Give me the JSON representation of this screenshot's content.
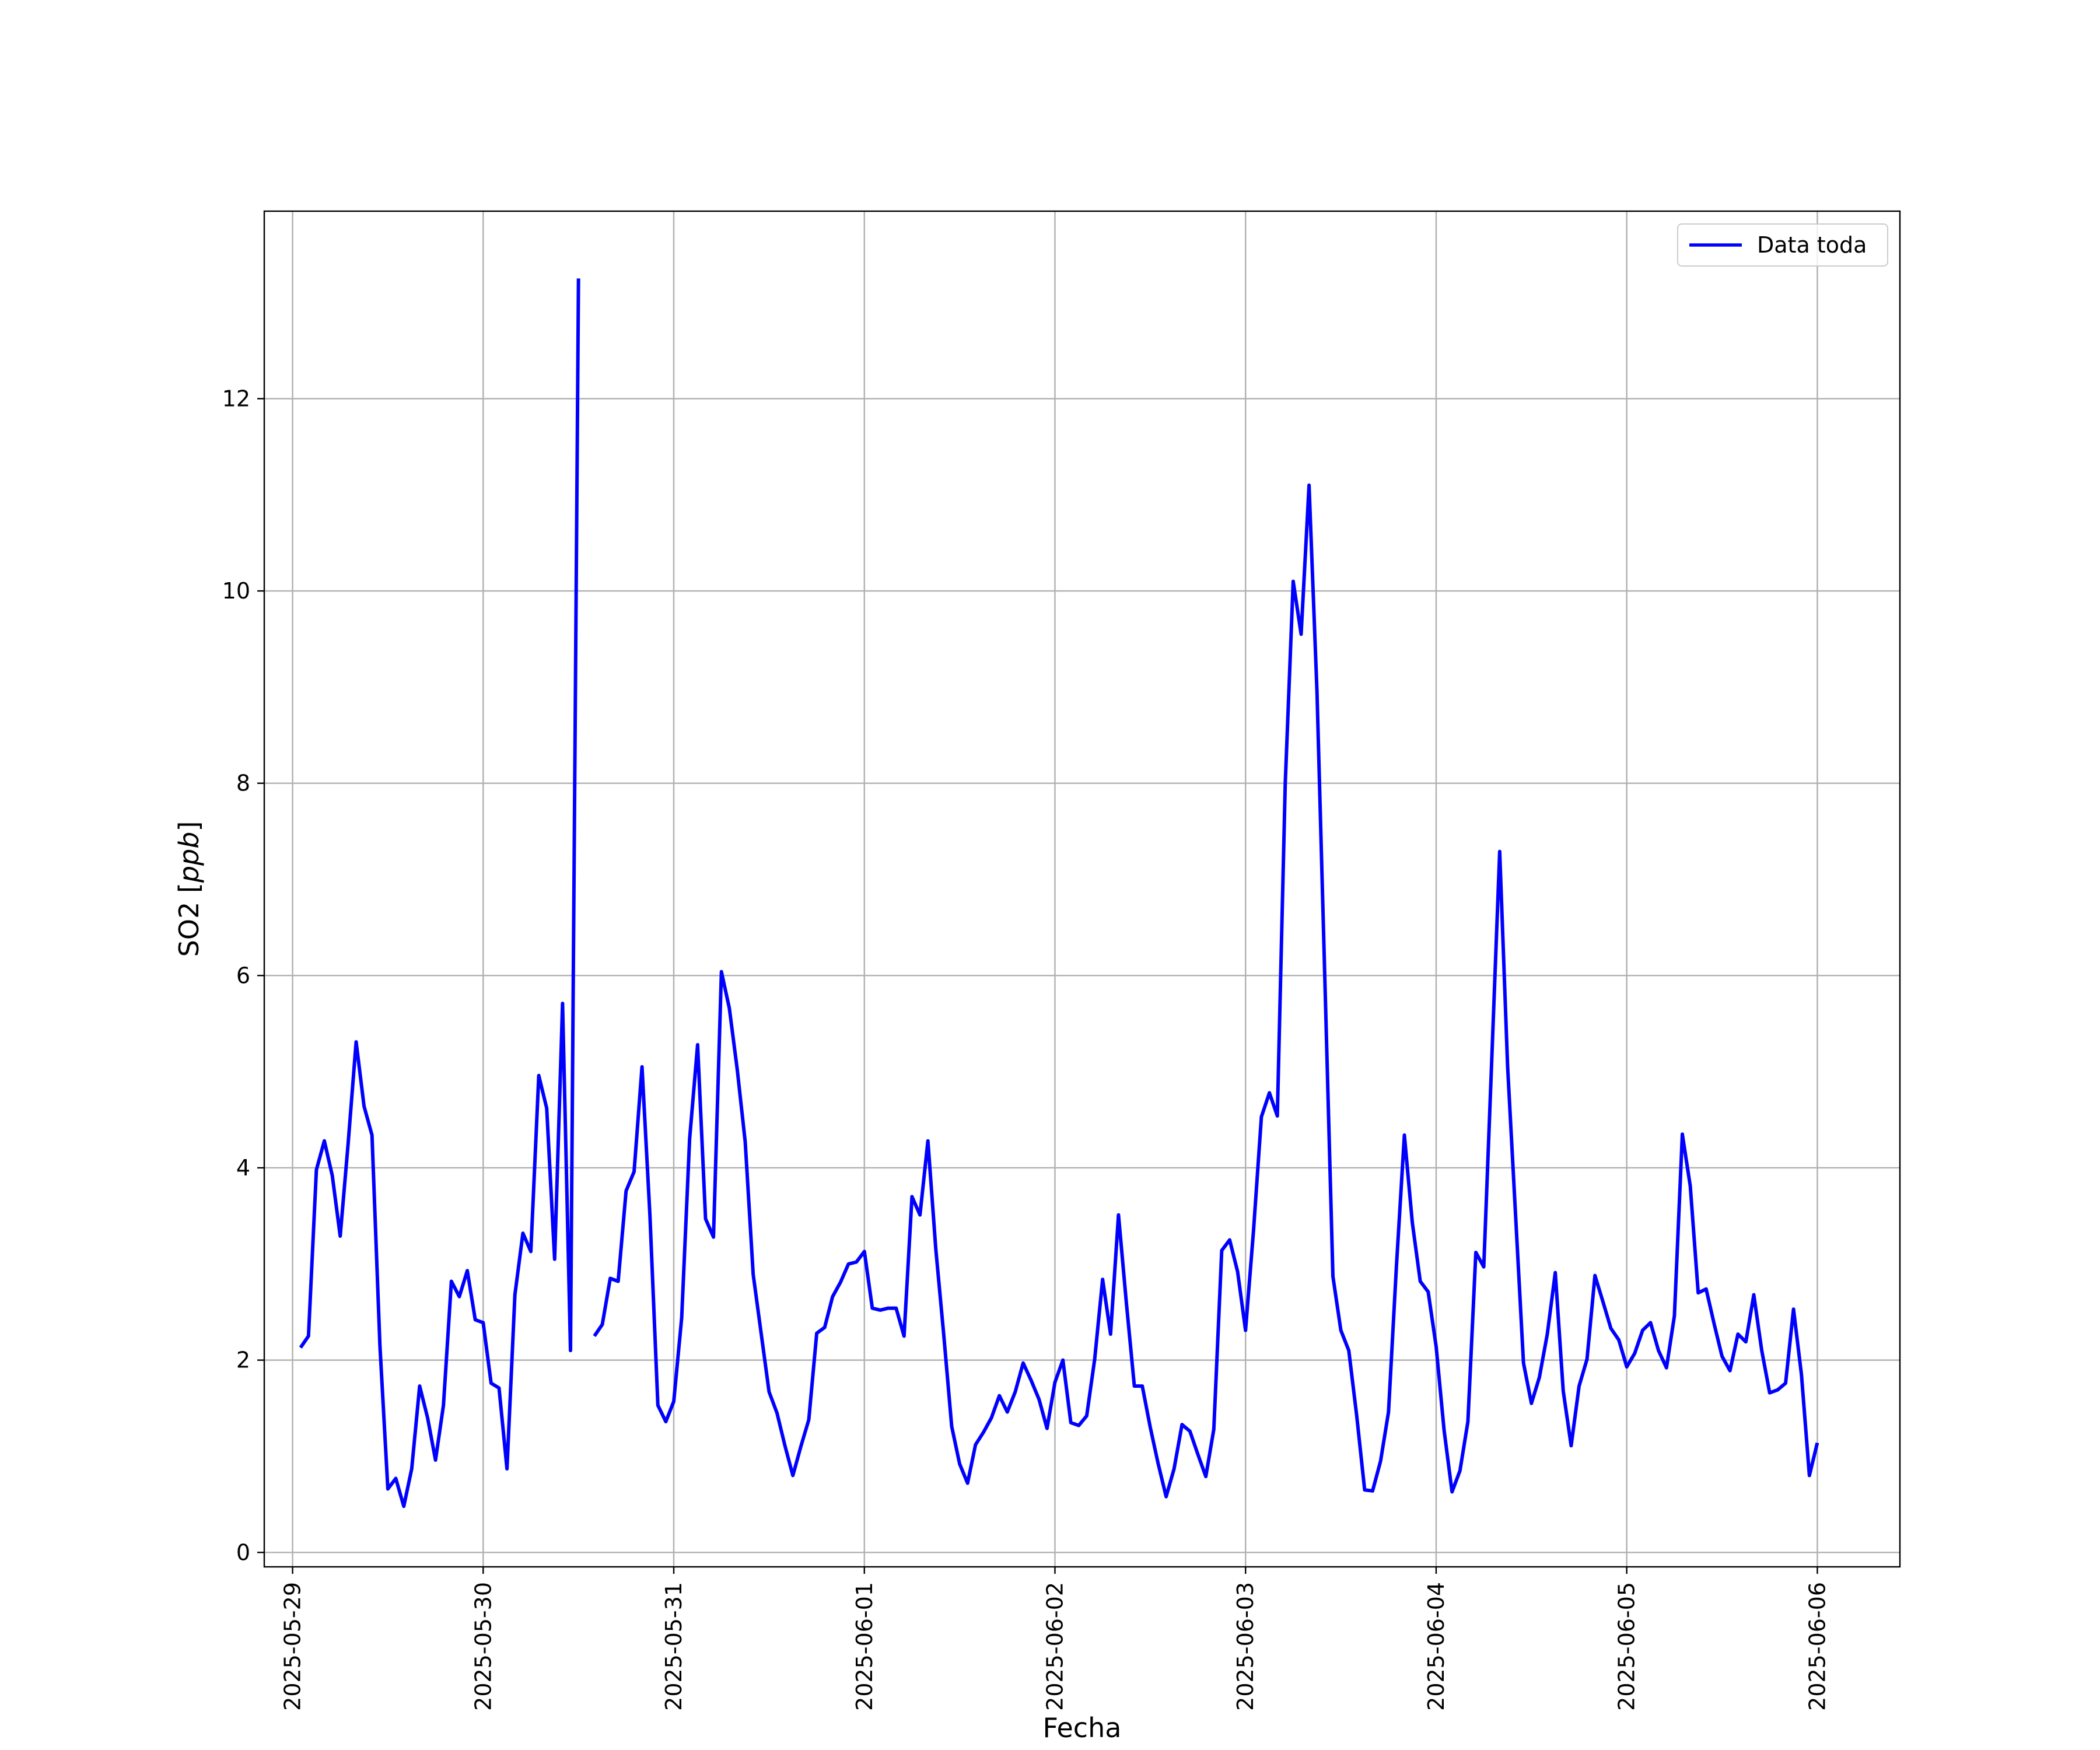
{
  "chart_data": {
    "type": "line",
    "title": "",
    "xlabel": "Fecha",
    "ylabel": "SO2 [",
    "ylabel_italic": "ppb",
    "ylabel_suffix": "]",
    "grid": true,
    "legend_position": "top-right",
    "xlim": [
      "2025-05-28 20:26",
      "2025-06-06 10:24"
    ],
    "ylim": [
      -0.15,
      13.95
    ],
    "x_ticks": [
      "2025-05-29",
      "2025-05-30",
      "2025-05-31",
      "2025-06-01",
      "2025-06-02",
      "2025-06-03",
      "2025-06-04",
      "2025-06-05",
      "2025-06-06"
    ],
    "y_ticks": [
      "0",
      "2",
      "4",
      "6",
      "8",
      "10",
      "12"
    ],
    "colors": {
      "series": "#0000ff",
      "grid": "#b0b0b0",
      "axis": "#000000"
    },
    "series": [
      {
        "name": "Data toda",
        "color": "#0000ff",
        "segments": [
          {
            "x": [
              "2025-05-29 01:00",
              "2025-05-29 02:00",
              "2025-05-29 03:00",
              "2025-05-29 04:00",
              "2025-05-29 05:00",
              "2025-05-29 06:00",
              "2025-05-29 07:00",
              "2025-05-29 08:00",
              "2025-05-29 09:00",
              "2025-05-29 10:00",
              "2025-05-29 11:00",
              "2025-05-29 12:00",
              "2025-05-29 13:00",
              "2025-05-29 14:00",
              "2025-05-29 15:00",
              "2025-05-29 16:00",
              "2025-05-29 17:00",
              "2025-05-29 18:00",
              "2025-05-29 19:00",
              "2025-05-29 20:00",
              "2025-05-29 21:00",
              "2025-05-29 22:00",
              "2025-05-29 23:00",
              "2025-05-30 00:00",
              "2025-05-30 01:00",
              "2025-05-30 02:00",
              "2025-05-30 03:00",
              "2025-05-30 04:00",
              "2025-05-30 05:00",
              "2025-05-30 06:00",
              "2025-05-30 07:00",
              "2025-05-30 08:00",
              "2025-05-30 09:00",
              "2025-05-30 10:00",
              "2025-05-30 11:00",
              "2025-05-30 12:00"
            ],
            "y": [
              2.13,
              2.25,
              3.98,
              4.28,
              3.92,
              3.29,
              4.26,
              5.31,
              4.64,
              4.34,
              2.15,
              0.66,
              0.77,
              0.48,
              0.87,
              1.73,
              1.4,
              0.96,
              1.53,
              2.82,
              2.66,
              2.93,
              2.42,
              2.39,
              1.76,
              1.71,
              0.87,
              2.68,
              3.32,
              3.13,
              4.96,
              4.62,
              3.05,
              5.71,
              2.1,
              13.25
            ]
          },
          {
            "x": [
              "2025-05-30 14:00",
              "2025-05-30 15:00",
              "2025-05-30 16:00",
              "2025-05-30 17:00",
              "2025-05-30 18:00",
              "2025-05-30 19:00",
              "2025-05-30 20:00",
              "2025-05-30 21:00",
              "2025-05-30 22:00",
              "2025-05-30 23:00",
              "2025-05-31 00:00",
              "2025-05-31 01:00",
              "2025-05-31 02:00",
              "2025-05-31 03:00",
              "2025-05-31 04:00",
              "2025-05-31 05:00",
              "2025-05-31 06:00",
              "2025-05-31 07:00",
              "2025-05-31 08:00",
              "2025-05-31 09:00",
              "2025-05-31 10:00",
              "2025-05-31 11:00",
              "2025-05-31 12:00",
              "2025-05-31 13:00",
              "2025-05-31 14:00",
              "2025-05-31 15:00",
              "2025-05-31 16:00",
              "2025-05-31 17:00",
              "2025-05-31 18:00",
              "2025-05-31 19:00",
              "2025-05-31 20:00",
              "2025-05-31 21:00",
              "2025-05-31 22:00",
              "2025-05-31 23:00",
              "2025-06-01 00:00",
              "2025-06-01 01:00",
              "2025-06-01 02:00",
              "2025-06-01 03:00",
              "2025-06-01 04:00",
              "2025-06-01 05:00",
              "2025-06-01 06:00",
              "2025-06-01 07:00",
              "2025-06-01 08:00",
              "2025-06-01 09:00",
              "2025-06-01 10:00",
              "2025-06-01 11:00",
              "2025-06-01 12:00",
              "2025-06-01 13:00",
              "2025-06-01 14:00",
              "2025-06-01 15:00",
              "2025-06-01 16:00",
              "2025-06-01 17:00",
              "2025-06-01 18:00",
              "2025-06-01 19:00",
              "2025-06-01 20:00",
              "2025-06-01 21:00",
              "2025-06-01 22:00",
              "2025-06-01 23:00",
              "2025-06-02 00:00",
              "2025-06-02 01:00",
              "2025-06-02 02:00",
              "2025-06-02 03:00",
              "2025-06-02 04:00",
              "2025-06-02 05:00",
              "2025-06-02 06:00",
              "2025-06-02 07:00",
              "2025-06-02 08:00",
              "2025-06-02 09:00",
              "2025-06-02 10:00",
              "2025-06-02 11:00",
              "2025-06-02 12:00",
              "2025-06-02 13:00",
              "2025-06-02 14:00",
              "2025-06-02 15:00",
              "2025-06-02 16:00",
              "2025-06-02 17:00",
              "2025-06-02 18:00",
              "2025-06-02 19:00",
              "2025-06-02 20:00",
              "2025-06-02 21:00",
              "2025-06-02 22:00",
              "2025-06-02 23:00",
              "2025-06-03 00:00",
              "2025-06-03 01:00",
              "2025-06-03 02:00",
              "2025-06-03 03:00",
              "2025-06-03 04:00",
              "2025-06-03 05:00",
              "2025-06-03 06:00",
              "2025-06-03 07:00",
              "2025-06-03 08:00",
              "2025-06-03 09:00",
              "2025-06-03 10:00",
              "2025-06-03 11:00",
              "2025-06-03 12:00",
              "2025-06-03 13:00",
              "2025-06-03 14:00",
              "2025-06-03 15:00",
              "2025-06-03 16:00",
              "2025-06-03 17:00",
              "2025-06-03 18:00",
              "2025-06-03 19:00",
              "2025-06-03 20:00",
              "2025-06-03 21:00",
              "2025-06-03 22:00",
              "2025-06-03 23:00",
              "2025-06-04 00:00",
              "2025-06-04 01:00",
              "2025-06-04 02:00",
              "2025-06-04 03:00",
              "2025-06-04 04:00",
              "2025-06-04 05:00",
              "2025-06-04 06:00",
              "2025-06-04 07:00",
              "2025-06-04 08:00",
              "2025-06-04 09:00",
              "2025-06-04 10:00",
              "2025-06-04 11:00",
              "2025-06-04 12:00",
              "2025-06-04 13:00",
              "2025-06-04 14:00",
              "2025-06-04 15:00",
              "2025-06-04 16:00",
              "2025-06-04 17:00",
              "2025-06-04 18:00",
              "2025-06-04 19:00",
              "2025-06-04 20:00",
              "2025-06-04 21:00",
              "2025-06-04 22:00",
              "2025-06-04 23:00",
              "2025-06-05 00:00",
              "2025-06-05 01:00",
              "2025-06-05 02:00",
              "2025-06-05 03:00",
              "2025-06-05 04:00",
              "2025-06-05 05:00",
              "2025-06-05 06:00",
              "2025-06-05 07:00",
              "2025-06-05 08:00",
              "2025-06-05 09:00",
              "2025-06-05 10:00",
              "2025-06-05 11:00",
              "2025-06-05 12:00",
              "2025-06-05 13:00",
              "2025-06-05 14:00",
              "2025-06-05 15:00",
              "2025-06-05 16:00",
              "2025-06-05 17:00",
              "2025-06-05 18:00",
              "2025-06-05 19:00",
              "2025-06-05 20:00",
              "2025-06-05 21:00",
              "2025-06-05 22:00",
              "2025-06-05 23:00",
              "2025-06-06 00:00"
            ],
            "y": [
              2.25,
              2.37,
              2.85,
              2.82,
              3.76,
              3.96,
              5.05,
              3.5,
              1.53,
              1.36,
              1.57,
              2.44,
              4.3,
              5.28,
              3.47,
              3.28,
              6.04,
              5.66,
              5.02,
              4.27,
              2.89,
              2.28,
              1.67,
              1.45,
              1.11,
              0.8,
              1.1,
              1.38,
              2.28,
              2.34,
              2.66,
              2.81,
              3.0,
              3.02,
              3.13,
              2.54,
              2.52,
              2.54,
              2.54,
              2.25,
              3.7,
              3.51,
              4.28,
              3.15,
              2.26,
              1.31,
              0.92,
              0.72,
              1.12,
              1.25,
              1.4,
              1.63,
              1.46,
              1.67,
              1.97,
              1.79,
              1.59,
              1.29,
              1.77,
              2.0,
              1.35,
              1.32,
              1.42,
              2.01,
              2.84,
              2.27,
              3.51,
              2.59,
              1.73,
              1.73,
              1.3,
              0.92,
              0.58,
              0.87,
              1.33,
              1.26,
              1.02,
              0.79,
              1.28,
              3.14,
              3.25,
              2.92,
              2.31,
              3.34,
              4.53,
              4.78,
              4.54,
              8.0,
              10.1,
              9.55,
              11.1,
              8.95,
              5.91,
              2.87,
              2.31,
              2.1,
              1.42,
              0.65,
              0.64,
              0.95,
              1.46,
              2.98,
              4.34,
              3.43,
              2.82,
              2.71,
              2.14,
              1.27,
              0.63,
              0.85,
              1.36,
              3.12,
              2.97,
              5.11,
              7.29,
              5.05,
              3.51,
              1.97,
              1.55,
              1.82,
              2.27,
              2.91,
              1.68,
              1.11,
              1.73,
              2.01,
              2.88,
              2.61,
              2.33,
              2.21,
              1.93,
              2.07,
              2.31,
              2.39,
              2.1,
              1.92,
              2.46,
              4.35,
              3.81,
              2.7,
              2.74,
              2.38,
              2.04,
              1.89,
              2.27,
              2.19,
              2.68,
              2.1,
              1.66,
              1.69,
              1.76,
              2.53,
              1.85,
              0.8,
              1.14
            ]
          }
        ]
      }
    ]
  }
}
